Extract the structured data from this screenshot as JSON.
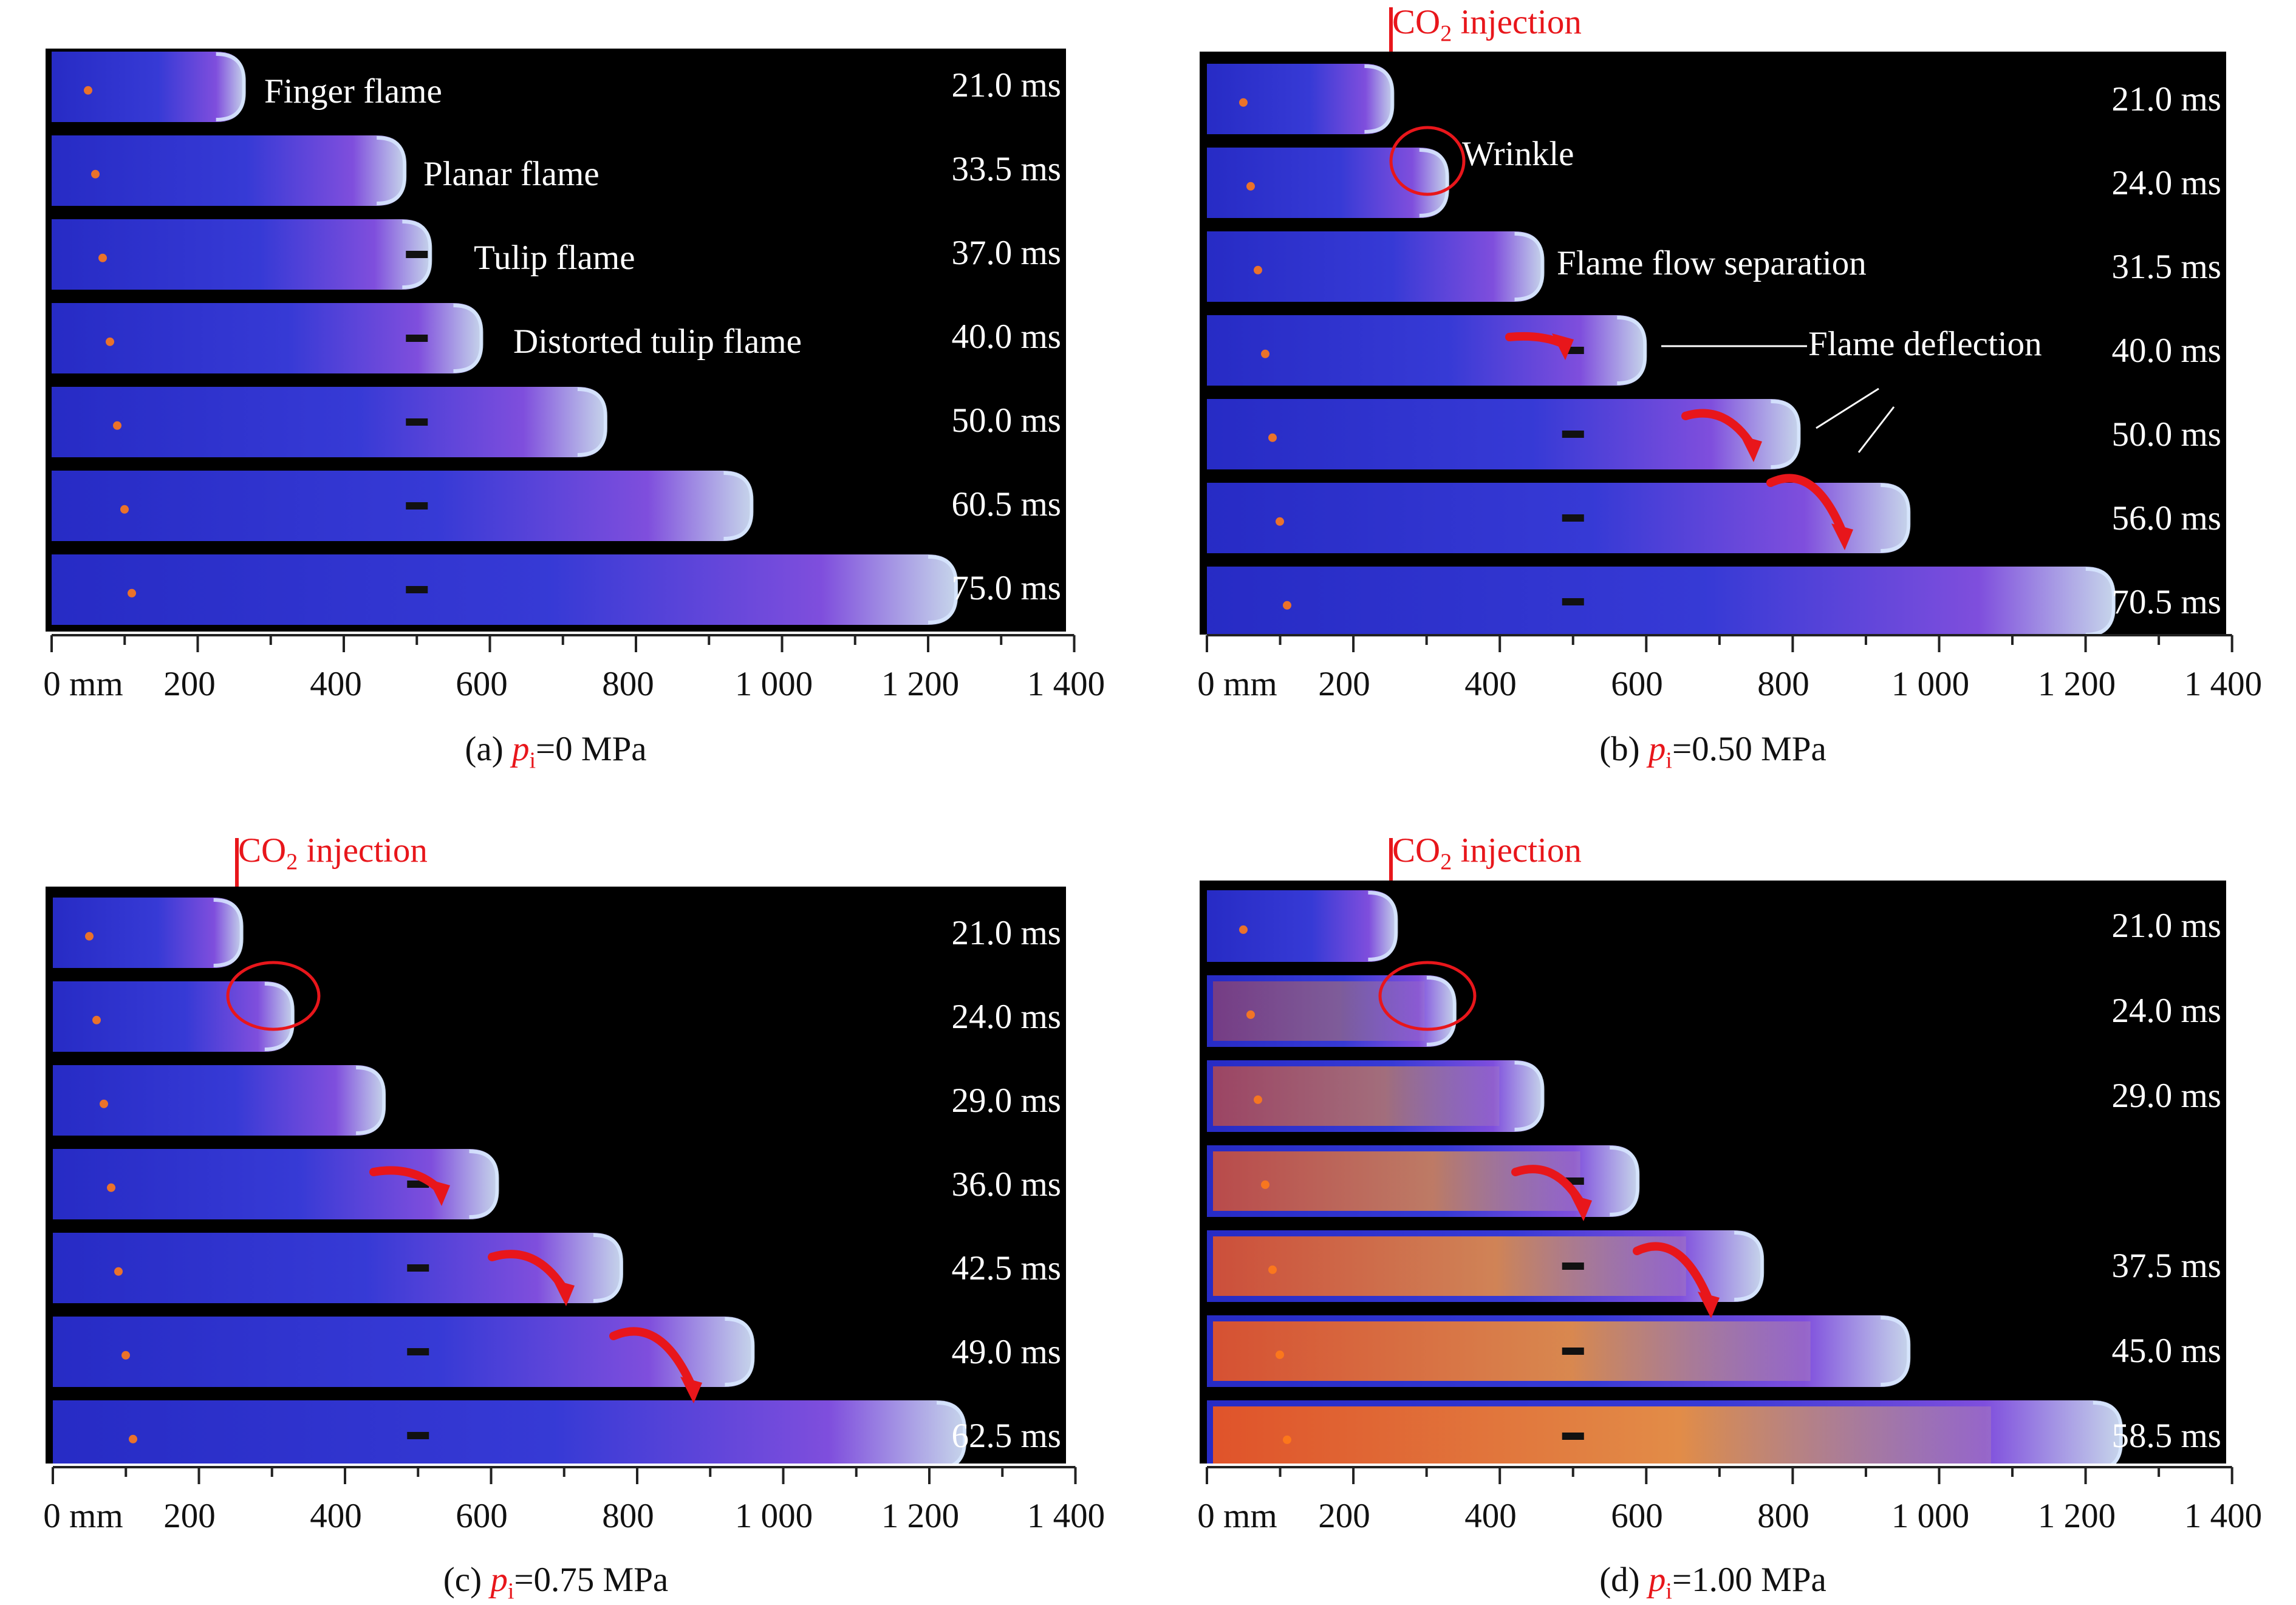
{
  "axis": {
    "unit_label": "0 mm",
    "ticks": [
      "200",
      "400",
      "600",
      "800",
      "1 000",
      "1 200",
      "1 400"
    ],
    "range_mm": [
      0,
      1400
    ]
  },
  "co2_label": {
    "prefix": "CO",
    "sub": "2",
    "suffix": " injection"
  },
  "colors": {
    "flame_blue": "#3b3fe8",
    "flame_violet": "#8a55f0",
    "flame_tip": "#d8e8ff",
    "hot_spot": "#ff7a1a",
    "red_annotation": "#e8161b",
    "background": "#000000"
  },
  "panels": [
    {
      "id": "a",
      "caption": {
        "prefix": "(a) ",
        "p": "p",
        "sub": "i",
        "value": "=0 MPa"
      },
      "co2_injection": false,
      "times": [
        "21.0 ms",
        "33.5 ms",
        "37.0 ms",
        "40.0 ms",
        "50.0 ms",
        "60.5 ms",
        "75.0 ms"
      ],
      "annotations": [
        "Finger flame",
        "Planar flame",
        "Tulip flame",
        "Distorted tulip flame"
      ],
      "flame_front_mm": [
        265,
        485,
        520,
        590,
        760,
        960,
        1240
      ],
      "orange_intensity": [
        0,
        0.05,
        0.05,
        0.05,
        0.05,
        0.05,
        0.05
      ]
    },
    {
      "id": "b",
      "caption": {
        "prefix": "(b) ",
        "p": "p",
        "sub": "i",
        "value": "=0.50 MPa"
      },
      "co2_injection": true,
      "times": [
        "21.0 ms",
        "24.0 ms",
        "31.5 ms",
        "40.0 ms",
        "50.0 ms",
        "56.0 ms",
        "70.5 ms"
      ],
      "annotations": [
        "Wrinkle",
        "Flame flow separation",
        "Flame deflection"
      ],
      "flame_front_mm": [
        255,
        330,
        460,
        600,
        810,
        960,
        1240
      ],
      "orange_intensity": [
        0,
        0,
        0.05,
        0.05,
        0.05,
        0.05,
        0.05
      ]
    },
    {
      "id": "c",
      "caption": {
        "prefix": "(c) ",
        "p": "p",
        "sub": "i",
        "value": "=0.75 MPa"
      },
      "co2_injection": true,
      "times": [
        "21.0 ms",
        "24.0 ms",
        "29.0 ms",
        "36.0 ms",
        "42.5 ms",
        "49.0 ms",
        "62.5 ms"
      ],
      "annotations": [],
      "flame_front_mm": [
        260,
        330,
        455,
        610,
        780,
        960,
        1250
      ],
      "orange_intensity": [
        0,
        0,
        0.05,
        0.05,
        0.05,
        0.05,
        0.05
      ]
    },
    {
      "id": "d",
      "caption": {
        "prefix": "(d) ",
        "p": "p",
        "sub": "i",
        "value": "=1.00 MPa"
      },
      "co2_injection": true,
      "times": [
        "21.0 ms",
        "24.0 ms",
        "29.0 ms",
        "",
        "37.5 ms",
        "45.0 ms",
        "58.5 ms"
      ],
      "annotations": [],
      "flame_front_mm": [
        260,
        340,
        460,
        590,
        760,
        960,
        1250
      ],
      "orange_intensity": [
        0,
        0.4,
        0.6,
        0.75,
        0.85,
        0.9,
        0.95
      ]
    }
  ]
}
